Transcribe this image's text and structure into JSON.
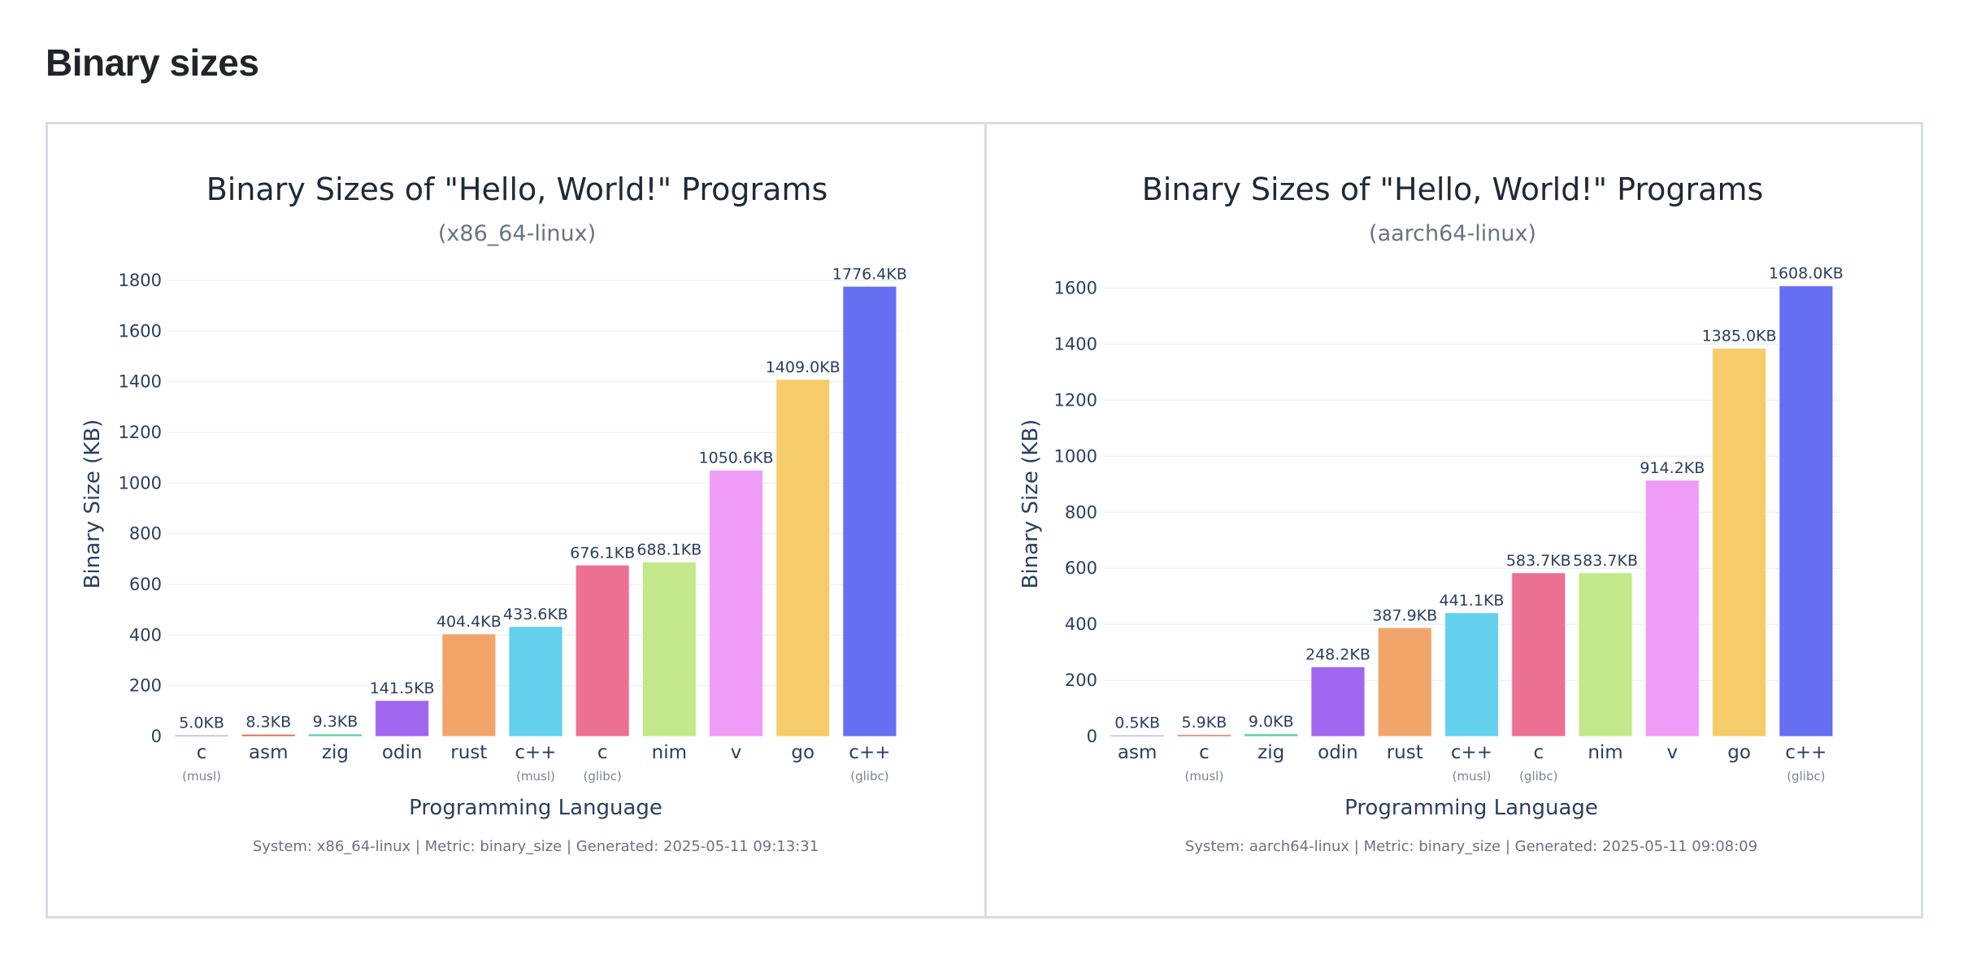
{
  "page": {
    "heading": "Binary sizes"
  },
  "chart_data": [
    {
      "type": "bar",
      "title": "Binary Sizes of \"Hello, World!\" Programs",
      "subtitle": "(x86_64-linux)",
      "xlabel": "Programming Language",
      "ylabel": "Binary Size (KB)",
      "ylim": [
        0,
        1830
      ],
      "yticks": [
        0,
        200,
        400,
        600,
        800,
        1000,
        1200,
        1400,
        1600,
        1800
      ],
      "grid": true,
      "legend": "none",
      "categories": [
        "c",
        "asm",
        "zig",
        "odin",
        "rust",
        "c++",
        "c",
        "nim",
        "v",
        "go",
        "c++"
      ],
      "category_sublabels": [
        "(musl)",
        "",
        "",
        "",
        "",
        "(musl)",
        "(glibc)",
        "",
        "",
        "",
        "(glibc)"
      ],
      "values": [
        5.0,
        8.3,
        9.3,
        141.5,
        404.4,
        433.6,
        676.1,
        688.1,
        1050.6,
        1409.0,
        1776.4
      ],
      "value_labels": [
        "5.0KB",
        "8.3KB",
        "9.3KB",
        "141.5KB",
        "404.4KB",
        "433.6KB",
        "676.1KB",
        "688.1KB",
        "1050.6KB",
        "1409.0KB",
        "1776.4KB"
      ],
      "colors": [
        "#8a91f7",
        "#e2725b",
        "#5fcfa0",
        "#a066f0",
        "#f2a56a",
        "#63d0ee",
        "#ec7093",
        "#c3e78b",
        "#f09cf6",
        "#f5cc69",
        "#666ef2"
      ],
      "footer": "System: x86_64-linux | Metric: binary_size | Generated: 2025-05-11 09:13:31"
    },
    {
      "type": "bar",
      "title": "Binary Sizes of \"Hello, World!\" Programs",
      "subtitle": "(aarch64-linux)",
      "xlabel": "Programming Language",
      "ylabel": "Binary Size (KB)",
      "ylim": [
        0,
        1620
      ],
      "yticks": [
        0,
        200,
        400,
        600,
        800,
        1000,
        1200,
        1400,
        1600
      ],
      "grid": true,
      "legend": "none",
      "categories": [
        "asm",
        "c",
        "zig",
        "odin",
        "rust",
        "c++",
        "c",
        "nim",
        "v",
        "go",
        "c++"
      ],
      "category_sublabels": [
        "",
        "(musl)",
        "",
        "",
        "",
        "(musl)",
        "(glibc)",
        "",
        "",
        "",
        "(glibc)"
      ],
      "values": [
        0.5,
        5.9,
        9.0,
        248.2,
        387.9,
        441.1,
        583.7,
        583.7,
        914.2,
        1385.0,
        1608.0
      ],
      "value_labels": [
        "0.5KB",
        "5.9KB",
        "9.0KB",
        "248.2KB",
        "387.9KB",
        "441.1KB",
        "583.7KB",
        "583.7KB",
        "914.2KB",
        "1385.0KB",
        "1608.0KB"
      ],
      "colors": [
        "#8a91f7",
        "#e2725b",
        "#5fcfa0",
        "#a066f0",
        "#f2a56a",
        "#63d0ee",
        "#ec7093",
        "#c3e78b",
        "#f09cf6",
        "#f5cc69",
        "#666ef2"
      ],
      "footer": "System: aarch64-linux | Metric: binary_size | Generated: 2025-05-11 09:08:09"
    }
  ]
}
